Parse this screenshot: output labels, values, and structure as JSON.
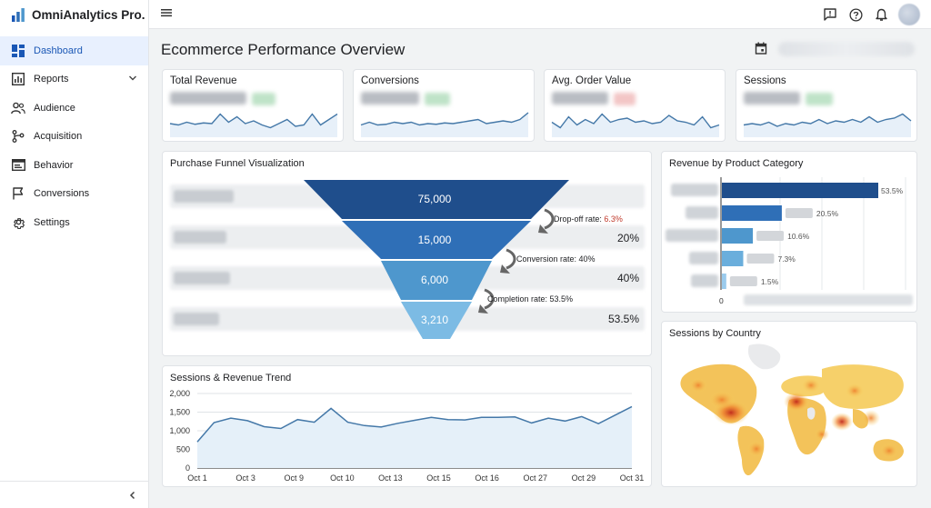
{
  "app": {
    "name": "OmniAnalytics Pro."
  },
  "colors": {
    "accent": "#1a57b5",
    "active_bg": "#e8f0fe",
    "line": "#4478a8",
    "funnel_1": "#1f4e8c",
    "funnel_2": "#2f6fb7",
    "funnel_3": "#4e97cd",
    "funnel_4": "#7cbbe4",
    "dropoff_red": "#c0392b"
  },
  "sidebar": {
    "items": [
      {
        "label": "Dashboard",
        "icon": "dashboard-icon",
        "active": true
      },
      {
        "label": "Reports",
        "icon": "bar-chart-icon",
        "expandable": true
      },
      {
        "label": "Audience",
        "icon": "people-icon"
      },
      {
        "label": "Acquisition",
        "icon": "branch-icon"
      },
      {
        "label": "Behavior",
        "icon": "browser-window-icon"
      },
      {
        "label": "Conversions",
        "icon": "flag-icon"
      },
      {
        "label": "Settings",
        "icon": "gear-icon"
      }
    ]
  },
  "header": {
    "title": "Ecommerce Performance Overview"
  },
  "kpis": [
    {
      "title": "Total Revenue",
      "spark": [
        20,
        18,
        22,
        19,
        21,
        20,
        34,
        22,
        30,
        20,
        24,
        18,
        14,
        20,
        26,
        16,
        18,
        34,
        18,
        26,
        34
      ]
    },
    {
      "title": "Conversions",
      "spark": [
        18,
        22,
        18,
        19,
        22,
        20,
        22,
        18,
        20,
        19,
        21,
        20,
        22,
        24,
        26,
        20,
        22,
        24,
        22,
        26,
        36
      ]
    },
    {
      "title": "Avg. Order Value",
      "spark": [
        22,
        14,
        30,
        18,
        26,
        20,
        34,
        22,
        26,
        28,
        22,
        24,
        20,
        22,
        32,
        24,
        22,
        18,
        30,
        14,
        18
      ]
    },
    {
      "title": "Sessions",
      "spark": [
        18,
        20,
        18,
        22,
        16,
        20,
        18,
        22,
        20,
        26,
        20,
        24,
        22,
        26,
        22,
        30,
        22,
        26,
        28,
        34,
        24
      ]
    }
  ],
  "funnel": {
    "title": "Purchase Funnel Visualization",
    "stages": [
      {
        "value": 75000,
        "label": "75,000"
      },
      {
        "value": 15000,
        "label": "15,000",
        "pct": "20%"
      },
      {
        "value": 6000,
        "label": "6,000",
        "pct": "40%"
      },
      {
        "value": 3210,
        "label": "3,210",
        "pct": "53.5%"
      }
    ],
    "annotations": [
      {
        "label": "Drop-off rate: ",
        "value": "6.3%"
      },
      {
        "label": "Conversion rate: 40%",
        "value": ""
      },
      {
        "label": "Completion rate: 53.5%",
        "value": ""
      }
    ]
  },
  "category": {
    "title": "Revenue by Product Category",
    "x_min_label": "0",
    "bars": [
      {
        "value": 53.5,
        "label": "53.5%",
        "color": "#1f4e8c"
      },
      {
        "value": 20.5,
        "label": "20.5%",
        "color": "#2f6fb7"
      },
      {
        "value": 10.6,
        "label": "10.6%",
        "color": "#4e97cd"
      },
      {
        "value": 7.3,
        "label": "7.3%",
        "color": "#6aaedc"
      },
      {
        "value": 1.5,
        "label": "1.5%",
        "color": "#9acbed"
      }
    ]
  },
  "trend": {
    "title": "Sessions & Revenue Trend",
    "y_ticks": [
      "2,000",
      "1,500",
      "1,000",
      "500",
      "0"
    ],
    "x_ticks": [
      "Oct 1",
      "Oct 3",
      "Oct 9",
      "Oct 10",
      "Oct 13",
      "Oct 15",
      "Oct 16",
      "Oct 27",
      "Oct 29",
      "Oct 31"
    ],
    "ylim": [
      0,
      2000
    ],
    "values": [
      700,
      1220,
      1340,
      1270,
      1110,
      1060,
      1300,
      1230,
      1600,
      1230,
      1140,
      1100,
      1200,
      1280,
      1360,
      1300,
      1290,
      1360,
      1360,
      1370,
      1210,
      1340,
      1260,
      1380,
      1190,
      1420,
      1650
    ]
  },
  "sessions_country": {
    "title": "Sessions by Country"
  },
  "chart_data": [
    {
      "type": "line",
      "title": "Sessions & Revenue Trend",
      "x": [
        "Oct 1",
        "Oct 3",
        "Oct 9",
        "Oct 10",
        "Oct 13",
        "Oct 15",
        "Oct 16",
        "Oct 27",
        "Oct 29",
        "Oct 31"
      ],
      "ylim": [
        0,
        2000
      ],
      "grid": true
    },
    {
      "type": "bar",
      "title": "Revenue by Product Category",
      "values": [
        53.5,
        20.5,
        10.6,
        7.3,
        1.5
      ]
    },
    {
      "type": "bar",
      "title": "Purchase Funnel Visualization",
      "values": [
        75000,
        15000,
        6000,
        3210
      ]
    }
  ]
}
